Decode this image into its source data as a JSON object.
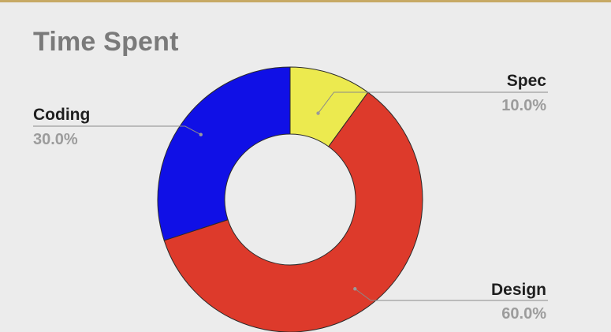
{
  "chart_data": {
    "type": "pie",
    "donut": true,
    "title": "Time Spent",
    "categories": [
      "Spec",
      "Design",
      "Coding"
    ],
    "values": [
      10.0,
      60.0,
      30.0
    ],
    "labels": [
      "10.0%",
      "60.0%",
      "30.0%"
    ],
    "colors": [
      "#ecea4f",
      "#dd3a2b",
      "#1010e6"
    ],
    "start_angle_deg": 0,
    "direction": "clockwise",
    "legend": "none"
  },
  "theme": {
    "background": "#ececec",
    "accent_rule": "#c7a965",
    "title_color": "#7a7a7a",
    "label_color": "#1f1f1f",
    "percent_color": "#9c9c9c",
    "leader_color": "#8a8a8a"
  }
}
